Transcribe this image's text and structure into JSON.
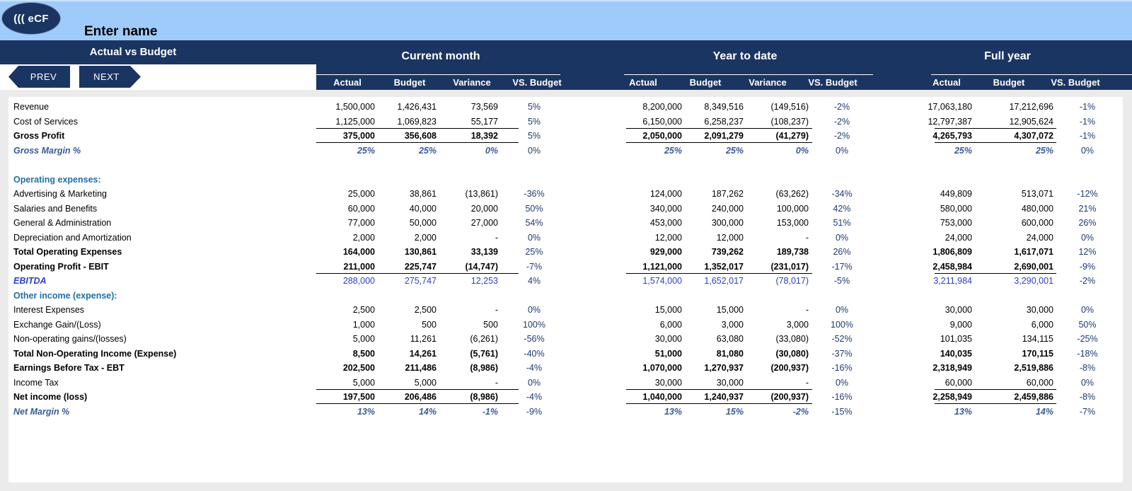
{
  "app": {
    "logo_text": "((( eCF",
    "company_name": "Enter name",
    "page_title": "Actual vs Budget",
    "prev_label": "PREV",
    "next_label": "NEXT"
  },
  "colors": {
    "navy": "#1b3563",
    "light_blue": "#9fcbfb",
    "label_blue": "#1d6fa6",
    "ebitda_blue": "#2c3ec5"
  },
  "groups": [
    {
      "title": "Current month",
      "subheaders": [
        "Actual",
        "Budget",
        "Variance",
        "VS. Budget"
      ]
    },
    {
      "title": "Year to date",
      "subheaders": [
        "Actual",
        "Budget",
        "Variance",
        "VS. Budget"
      ]
    },
    {
      "title": "Full year",
      "subheaders": [
        "Actual",
        "Budget",
        "VS. Budget"
      ]
    }
  ],
  "rows": [
    {
      "label": "Revenue",
      "style": "normal",
      "cm": [
        "1,500,000",
        "1,426,431",
        "73,569",
        "5%"
      ],
      "ytd": [
        "8,200,000",
        "8,349,516",
        "(149,516)",
        "-2%"
      ],
      "fy": [
        "17,063,180",
        "17,212,696",
        "-1%"
      ]
    },
    {
      "label": "Cost of Services",
      "style": "normal",
      "cm": [
        "1,125,000",
        "1,069,823",
        "55,177",
        "5%"
      ],
      "ytd": [
        "6,150,000",
        "6,258,237",
        "(108,237)",
        "-2%"
      ],
      "fy": [
        "12,797,387",
        "12,905,624",
        "-1%"
      ]
    },
    {
      "label": "Gross Profit",
      "style": "bold",
      "cm": [
        "375,000",
        "356,608",
        "18,392",
        "5%"
      ],
      "ytd": [
        "2,050,000",
        "2,091,279",
        "(41,279)",
        "-2%"
      ],
      "fy": [
        "4,265,793",
        "4,307,072",
        "-1%"
      ]
    },
    {
      "label": "Gross Margin %",
      "style": "margin",
      "cm": [
        "25%",
        "25%",
        "0%",
        "0%"
      ],
      "ytd": [
        "25%",
        "25%",
        "0%",
        "0%"
      ],
      "fy": [
        "25%",
        "25%",
        "0%"
      ]
    },
    {
      "label": "",
      "style": "blank",
      "cm": [
        "",
        "",
        "",
        ""
      ],
      "ytd": [
        "",
        "",
        "",
        ""
      ],
      "fy": [
        "",
        "",
        ""
      ]
    },
    {
      "label": "Operating expenses:",
      "style": "section",
      "cm": [
        "",
        "",
        "",
        ""
      ],
      "ytd": [
        "",
        "",
        "",
        ""
      ],
      "fy": [
        "",
        "",
        ""
      ]
    },
    {
      "label": "Advertising & Marketing",
      "style": "normal",
      "cm": [
        "25,000",
        "38,861",
        "(13,861)",
        "-36%"
      ],
      "ytd": [
        "124,000",
        "187,262",
        "(63,262)",
        "-34%"
      ],
      "fy": [
        "449,809",
        "513,071",
        "-12%"
      ]
    },
    {
      "label": "Salaries and Benefits",
      "style": "normal",
      "cm": [
        "60,000",
        "40,000",
        "20,000",
        "50%"
      ],
      "ytd": [
        "340,000",
        "240,000",
        "100,000",
        "42%"
      ],
      "fy": [
        "580,000",
        "480,000",
        "21%"
      ]
    },
    {
      "label": "General & Administration",
      "style": "normal",
      "cm": [
        "77,000",
        "50,000",
        "27,000",
        "54%"
      ],
      "ytd": [
        "453,000",
        "300,000",
        "153,000",
        "51%"
      ],
      "fy": [
        "753,000",
        "600,000",
        "26%"
      ]
    },
    {
      "label": "Depreciation and Amortization",
      "style": "normal",
      "cm": [
        "2,000",
        "2,000",
        "-",
        "0%"
      ],
      "ytd": [
        "12,000",
        "12,000",
        "-",
        "0%"
      ],
      "fy": [
        "24,000",
        "24,000",
        "0%"
      ]
    },
    {
      "label": "Total Operating Expenses",
      "style": "bold",
      "cm": [
        "164,000",
        "130,861",
        "33,139",
        "25%"
      ],
      "ytd": [
        "929,000",
        "739,262",
        "189,738",
        "26%"
      ],
      "fy": [
        "1,806,809",
        "1,617,071",
        "12%"
      ]
    },
    {
      "label": "Operating Profit - EBIT",
      "style": "bold",
      "cm": [
        "211,000",
        "225,747",
        "(14,747)",
        "-7%"
      ],
      "ytd": [
        "1,121,000",
        "1,352,017",
        "(231,017)",
        "-17%"
      ],
      "fy": [
        "2,458,984",
        "2,690,001",
        "-9%"
      ]
    },
    {
      "label": "EBITDA",
      "style": "ebitda",
      "cm": [
        "288,000",
        "275,747",
        "12,253",
        "4%"
      ],
      "ytd": [
        "1,574,000",
        "1,652,017",
        "(78,017)",
        "-5%"
      ],
      "fy": [
        "3,211,984",
        "3,290,001",
        "-2%"
      ]
    },
    {
      "label": "Other income (expense):",
      "style": "section",
      "cm": [
        "",
        "",
        "",
        ""
      ],
      "ytd": [
        "",
        "",
        "",
        ""
      ],
      "fy": [
        "",
        "",
        ""
      ]
    },
    {
      "label": "Interest Expenses",
      "style": "normal",
      "cm": [
        "2,500",
        "2,500",
        "-",
        "0%"
      ],
      "ytd": [
        "15,000",
        "15,000",
        "-",
        "0%"
      ],
      "fy": [
        "30,000",
        "30,000",
        "0%"
      ]
    },
    {
      "label": "Exchange Gain/(Loss)",
      "style": "normal",
      "cm": [
        "1,000",
        "500",
        "500",
        "100%"
      ],
      "ytd": [
        "6,000",
        "3,000",
        "3,000",
        "100%"
      ],
      "fy": [
        "9,000",
        "6,000",
        "50%"
      ]
    },
    {
      "label": "Non-operating gains/(losses)",
      "style": "normal",
      "cm": [
        "5,000",
        "11,261",
        "(6,261)",
        "-56%"
      ],
      "ytd": [
        "30,000",
        "63,080",
        "(33,080)",
        "-52%"
      ],
      "fy": [
        "101,035",
        "134,115",
        "-25%"
      ]
    },
    {
      "label": "Total Non-Operating Income (Expense)",
      "style": "bold",
      "cm": [
        "8,500",
        "14,261",
        "(5,761)",
        "-40%"
      ],
      "ytd": [
        "51,000",
        "81,080",
        "(30,080)",
        "-37%"
      ],
      "fy": [
        "140,035",
        "170,115",
        "-18%"
      ]
    },
    {
      "label": "Earnings Before Tax - EBT",
      "style": "bold",
      "cm": [
        "202,500",
        "211,486",
        "(8,986)",
        "-4%"
      ],
      "ytd": [
        "1,070,000",
        "1,270,937",
        "(200,937)",
        "-16%"
      ],
      "fy": [
        "2,318,949",
        "2,519,886",
        "-8%"
      ]
    },
    {
      "label": "Income Tax",
      "style": "normal",
      "cm": [
        "5,000",
        "5,000",
        "-",
        "0%"
      ],
      "ytd": [
        "30,000",
        "30,000",
        "-",
        "0%"
      ],
      "fy": [
        "60,000",
        "60,000",
        "0%"
      ]
    },
    {
      "label": "Net income (loss)",
      "style": "bold",
      "cm": [
        "197,500",
        "206,486",
        "(8,986)",
        "-4%"
      ],
      "ytd": [
        "1,040,000",
        "1,240,937",
        "(200,937)",
        "-16%"
      ],
      "fy": [
        "2,258,949",
        "2,459,886",
        "-8%"
      ]
    },
    {
      "label": "Net Margin %",
      "style": "margin",
      "cm": [
        "13%",
        "14%",
        "-1%",
        "-9%"
      ],
      "ytd": [
        "13%",
        "15%",
        "-2%",
        "-15%"
      ],
      "fy": [
        "13%",
        "14%",
        "-7%"
      ]
    }
  ]
}
